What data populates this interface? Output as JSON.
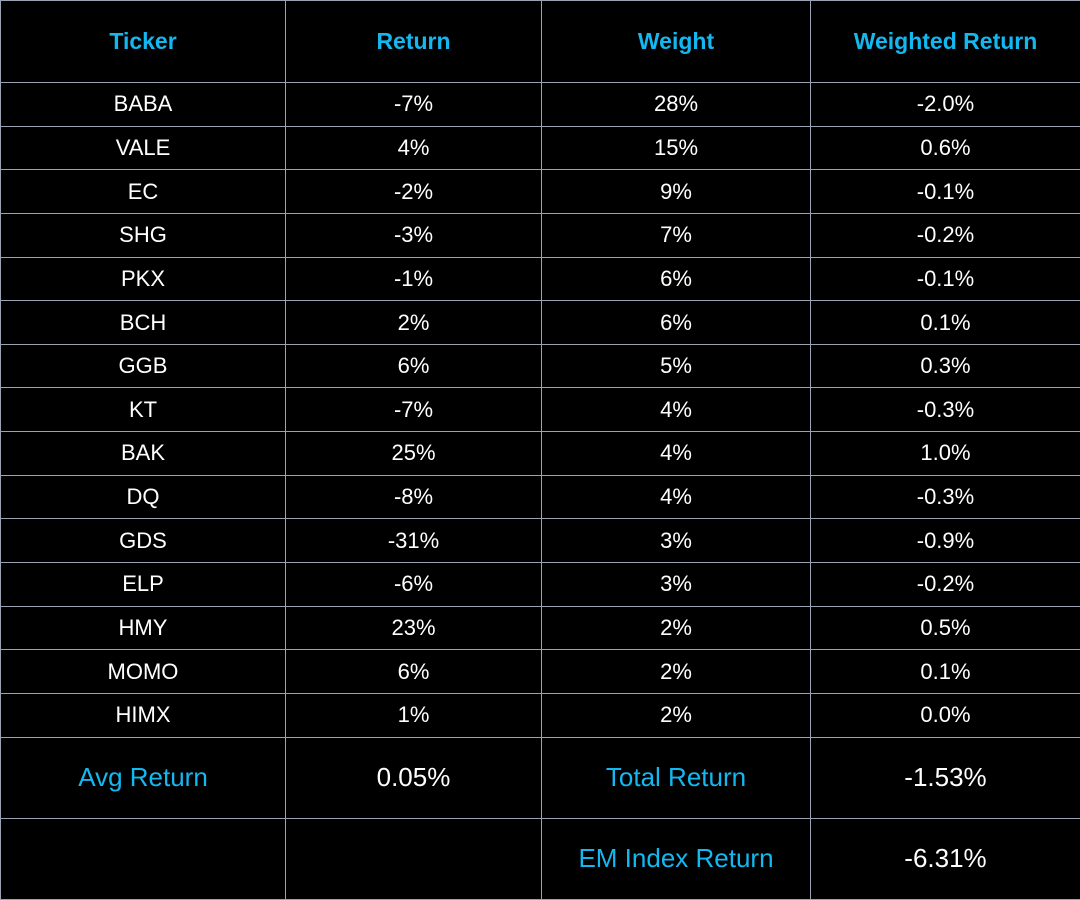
{
  "colors": {
    "background": "#000000",
    "accent": "#14b8f0",
    "text": "#ffffff",
    "grid": "#9aa3b2"
  },
  "headers": [
    "Ticker",
    "Return",
    "Weight",
    "Weighted Return"
  ],
  "rows": [
    {
      "ticker": "BABA",
      "return": "-7%",
      "weight": "28%",
      "weighted_return": "-2.0%"
    },
    {
      "ticker": "VALE",
      "return": "4%",
      "weight": "15%",
      "weighted_return": "0.6%"
    },
    {
      "ticker": "EC",
      "return": "-2%",
      "weight": "9%",
      "weighted_return": "-0.1%"
    },
    {
      "ticker": "SHG",
      "return": "-3%",
      "weight": "7%",
      "weighted_return": "-0.2%"
    },
    {
      "ticker": "PKX",
      "return": "-1%",
      "weight": "6%",
      "weighted_return": "-0.1%"
    },
    {
      "ticker": "BCH",
      "return": "2%",
      "weight": "6%",
      "weighted_return": "0.1%"
    },
    {
      "ticker": "GGB",
      "return": "6%",
      "weight": "5%",
      "weighted_return": "0.3%"
    },
    {
      "ticker": "KT",
      "return": "-7%",
      "weight": "4%",
      "weighted_return": "-0.3%"
    },
    {
      "ticker": "BAK",
      "return": "25%",
      "weight": "4%",
      "weighted_return": "1.0%"
    },
    {
      "ticker": "DQ",
      "return": "-8%",
      "weight": "4%",
      "weighted_return": "-0.3%"
    },
    {
      "ticker": "GDS",
      "return": "-31%",
      "weight": "3%",
      "weighted_return": "-0.9%"
    },
    {
      "ticker": "ELP",
      "return": "-6%",
      "weight": "3%",
      "weighted_return": "-0.2%"
    },
    {
      "ticker": "HMY",
      "return": "23%",
      "weight": "2%",
      "weighted_return": "0.5%"
    },
    {
      "ticker": "MOMO",
      "return": "6%",
      "weight": "2%",
      "weighted_return": "0.1%"
    },
    {
      "ticker": "HIMX",
      "return": "1%",
      "weight": "2%",
      "weighted_return": "0.0%"
    }
  ],
  "summary": {
    "avg_return_label": "Avg Return",
    "avg_return_value": "0.05%",
    "total_return_label": "Total Return",
    "total_return_value": "-1.53%",
    "em_index_label": "EM Index Return",
    "em_index_value": "-6.31%"
  }
}
